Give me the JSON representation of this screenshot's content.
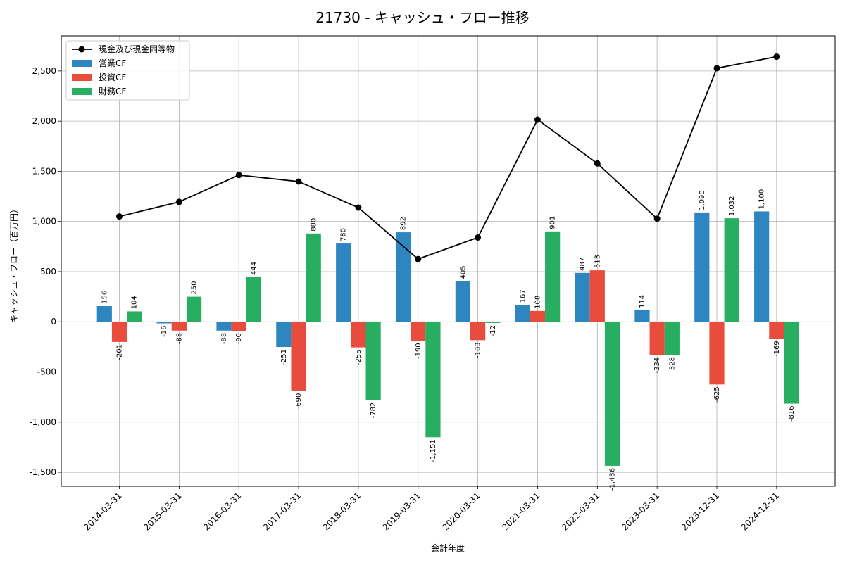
{
  "chart_data": {
    "type": "bar",
    "title": "21730 - キャッシュ・フロー推移",
    "xlabel": "会計年度",
    "ylabel": "キャッシュ・フロー（百万円）",
    "ylim": [
      -1640,
      2850
    ],
    "yticks": [
      -1500,
      -1000,
      -500,
      0,
      500,
      1000,
      1500,
      2000,
      2500
    ],
    "ytick_labels": [
      "-1,500",
      "-1,000",
      "-500",
      "0",
      "500",
      "1,000",
      "1,500",
      "2,000",
      "2,500"
    ],
    "grid": true,
    "legend_position": "top-left",
    "categories": [
      "2014-03-31",
      "2015-03-31",
      "2016-03-31",
      "2017-03-31",
      "2018-03-31",
      "2019-03-31",
      "2020-03-31",
      "2021-03-31",
      "2022-03-31",
      "2023-03-31",
      "2023-12-31",
      "2024-12-31"
    ],
    "line_series": {
      "name": "現金及び現金同等物",
      "color": "#000000",
      "values": [
        1050,
        1195,
        1462,
        1398,
        1138,
        625,
        840,
        2015,
        1578,
        1028,
        2528,
        2643
      ]
    },
    "series": [
      {
        "name": "営業CF",
        "color": "#2e86c1",
        "values": [
          156,
          -16,
          -88,
          -251,
          780,
          892,
          405,
          167,
          487,
          114,
          1090,
          1100
        ],
        "labels": [
          "156",
          "-16",
          "-88",
          "-251",
          "780",
          "892",
          "405",
          "167",
          "487",
          "114",
          "1,090",
          "1,100"
        ]
      },
      {
        "name": "投資CF",
        "color": "#e74c3c",
        "values": [
          -201,
          -88,
          -90,
          -690,
          -255,
          -190,
          -183,
          108,
          513,
          -334,
          -625,
          -169
        ],
        "labels": [
          "-201",
          "-88",
          "-90",
          "-690",
          "-255",
          "-190",
          "-183",
          "108",
          "513",
          "-334",
          "-625",
          "-169"
        ]
      },
      {
        "name": "財務CF",
        "color": "#27ae60",
        "values": [
          104,
          250,
          444,
          880,
          -782,
          -1151,
          -12,
          901,
          -1436,
          -328,
          1032,
          -816
        ],
        "labels": [
          "104",
          "250",
          "444",
          "880",
          "-782",
          "-1,151",
          "-12",
          "901",
          "-1,436",
          "-328",
          "1,032",
          "-816"
        ]
      }
    ]
  }
}
